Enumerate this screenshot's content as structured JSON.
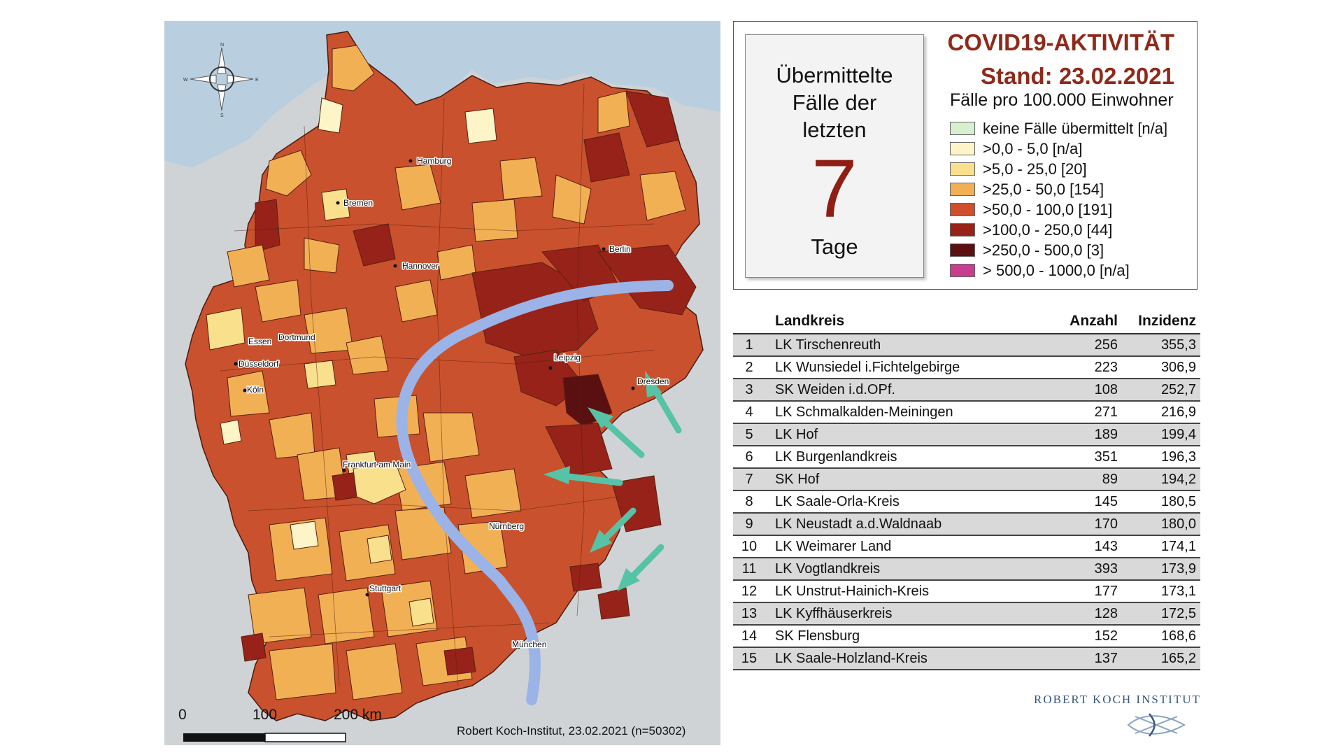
{
  "map": {
    "cities": [
      "Hamburg",
      "Bremen",
      "Berlin",
      "Hannover",
      "Essen",
      "Dortmund",
      "Düsseldorf",
      "Köln",
      "Leipzig",
      "Dresden",
      "Frankfurt am Main",
      "Nürnberg",
      "Stuttgart",
      "München"
    ],
    "scale": {
      "labels": [
        "0",
        "100",
        "200 km"
      ]
    },
    "credit": "Robert Koch-Institut, 23.02.2021 (n=50302)",
    "compass_letters": [
      "N",
      "S",
      "W",
      "E"
    ],
    "colors": {
      "background": "#cfd3d6",
      "sea": "#b9cfdf",
      "line_blue": "#9bb3e6",
      "arrow_teal": "#57c3a6"
    }
  },
  "legend": {
    "card": {
      "caption": "Übermittelte\nFälle der\nletzten",
      "number": "7",
      "unit": "Tage"
    },
    "title_line1": "COVID19-AKTIVITÄT",
    "title_line2": "Stand: 23.02.2021",
    "subtitle": "Fälle pro 100.000 Einwohner",
    "items": [
      {
        "label": "keine Fälle übermittelt [n/a]",
        "color": "#d8f0d0"
      },
      {
        "label": ">0,0 - 5,0 [n/a]",
        "color": "#fdf5c8"
      },
      {
        "label": ">5,0 - 25,0 [20]",
        "color": "#f9e08d"
      },
      {
        "label": ">25,0 - 50,0 [154]",
        "color": "#f2b055"
      },
      {
        "label": ">50,0 - 100,0 [191]",
        "color": "#cf4f2b"
      },
      {
        "label": ">100,0 - 250,0 [44]",
        "color": "#962219"
      },
      {
        "label": ">250,0 - 500,0 [3]",
        "color": "#5a1010"
      },
      {
        "label": "> 500,0 - 1000,0 [n/a]",
        "color": "#c93d8e"
      }
    ]
  },
  "table": {
    "headers": {
      "rank": "",
      "name": "Landkreis",
      "count": "Anzahl",
      "incidence": "Inzidenz"
    },
    "rows": [
      {
        "rank": "1",
        "name": "LK Tirschenreuth",
        "count": "256",
        "incidence": "355,3"
      },
      {
        "rank": "2",
        "name": "LK Wunsiedel i.Fichtelgebirge",
        "count": "223",
        "incidence": "306,9"
      },
      {
        "rank": "3",
        "name": "SK Weiden i.d.OPf.",
        "count": "108",
        "incidence": "252,7"
      },
      {
        "rank": "4",
        "name": "LK Schmalkalden-Meiningen",
        "count": "271",
        "incidence": "216,9"
      },
      {
        "rank": "5",
        "name": "LK Hof",
        "count": "189",
        "incidence": "199,4"
      },
      {
        "rank": "6",
        "name": "LK Burgenlandkreis",
        "count": "351",
        "incidence": "196,3"
      },
      {
        "rank": "7",
        "name": "SK Hof",
        "count": "89",
        "incidence": "194,2"
      },
      {
        "rank": "8",
        "name": "LK Saale-Orla-Kreis",
        "count": "145",
        "incidence": "180,5"
      },
      {
        "rank": "9",
        "name": "LK Neustadt a.d.Waldnaab",
        "count": "170",
        "incidence": "180,0"
      },
      {
        "rank": "10",
        "name": "LK Weimarer Land",
        "count": "143",
        "incidence": "174,1"
      },
      {
        "rank": "11",
        "name": "LK Vogtlandkreis",
        "count": "393",
        "incidence": "173,9"
      },
      {
        "rank": "12",
        "name": "LK Unstrut-Hainich-Kreis",
        "count": "177",
        "incidence": "173,1"
      },
      {
        "rank": "13",
        "name": "LK Kyffhäuserkreis",
        "count": "128",
        "incidence": "172,5"
      },
      {
        "rank": "14",
        "name": "SK Flensburg",
        "count": "152",
        "incidence": "168,6"
      },
      {
        "rank": "15",
        "name": "LK Saale-Holzland-Kreis",
        "count": "137",
        "incidence": "165,2"
      }
    ]
  },
  "logo": {
    "name": "ROBERT KOCH INSTITUT"
  }
}
